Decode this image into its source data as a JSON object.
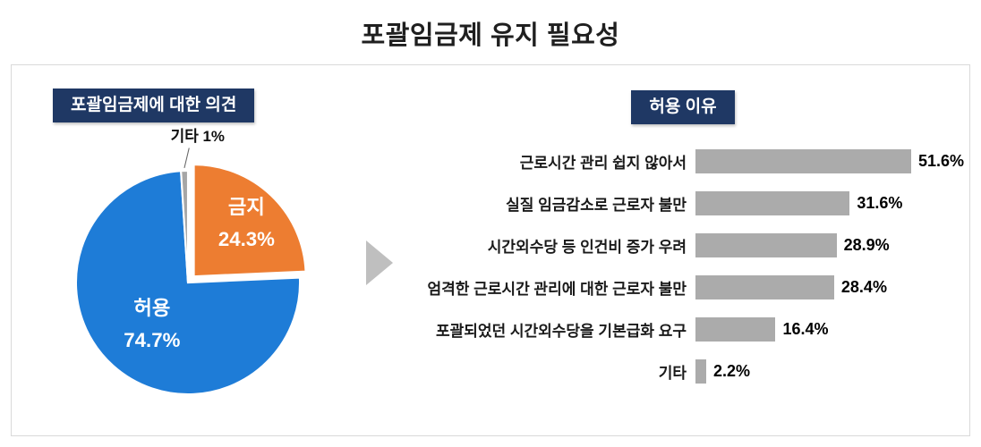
{
  "page": {
    "title": "포괄임금제 유지 필요성"
  },
  "colors": {
    "navy": "#1F3864",
    "pie_blue": "#1E7CD7",
    "pie_orange": "#ED7D31",
    "pie_gray": "#A6A6A6",
    "bar_gray": "#ABABAB",
    "arrow_gray": "#BFBFBF"
  },
  "chart_data": [
    {
      "type": "pie",
      "title": "포괄임금제에 대한 의견",
      "slices": [
        {
          "label": "금지",
          "value": 24.3,
          "color": "#ED7D31",
          "explode": true
        },
        {
          "label": "허용",
          "value": 74.7,
          "color": "#1E7CD7",
          "explode": false
        },
        {
          "label": "기타",
          "value": 1,
          "color": "#A6A6A6",
          "explode": false,
          "outside": true
        }
      ],
      "value_suffix": "%"
    },
    {
      "type": "bar",
      "title": "허용 이유",
      "orientation": "horizontal",
      "categories": [
        "근로시간 관리 쉽지 않아서",
        "실질 임금감소로 근로자 불만",
        "시간외수당 등 인건비 증가 우려",
        "엄격한 근로시간 관리에 대한 근로자 불만",
        "포괄되었던 시간외수당을 기본급화 요구",
        "기타"
      ],
      "values": [
        51.6,
        31.6,
        28.9,
        28.4,
        16.4,
        2.2
      ],
      "value_suffix": "%",
      "xlim": [
        0,
        55
      ],
      "legend": false,
      "grid": false
    }
  ]
}
